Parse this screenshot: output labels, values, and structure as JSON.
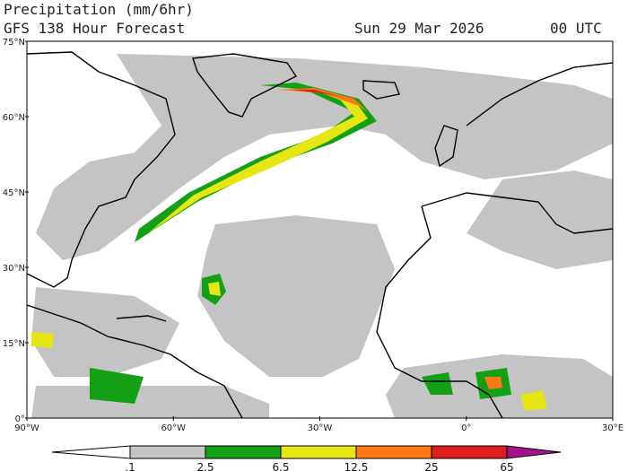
{
  "header": {
    "title": "Precipitation (mm/6hr)",
    "subtitle": "GFS 138 Hour Forecast",
    "date": "Sun 29 Mar 2026",
    "time": "00 UTC"
  },
  "map": {
    "lat_labels": [
      "75°N",
      "60°N",
      "45°N",
      "30°N",
      "15°N",
      "0°"
    ],
    "lon_labels": [
      "90°W",
      "60°W",
      "30°W",
      "0°",
      "30°E"
    ]
  },
  "colorbar": {
    "labels": [
      ".1",
      "2.5",
      "6.5",
      "12.5",
      "25",
      "65"
    ],
    "colors": [
      "#ffffff",
      "#c4c4c4",
      "#14a014",
      "#e6e614",
      "#ff7814",
      "#dc1e1e",
      "#a0148c"
    ]
  }
}
